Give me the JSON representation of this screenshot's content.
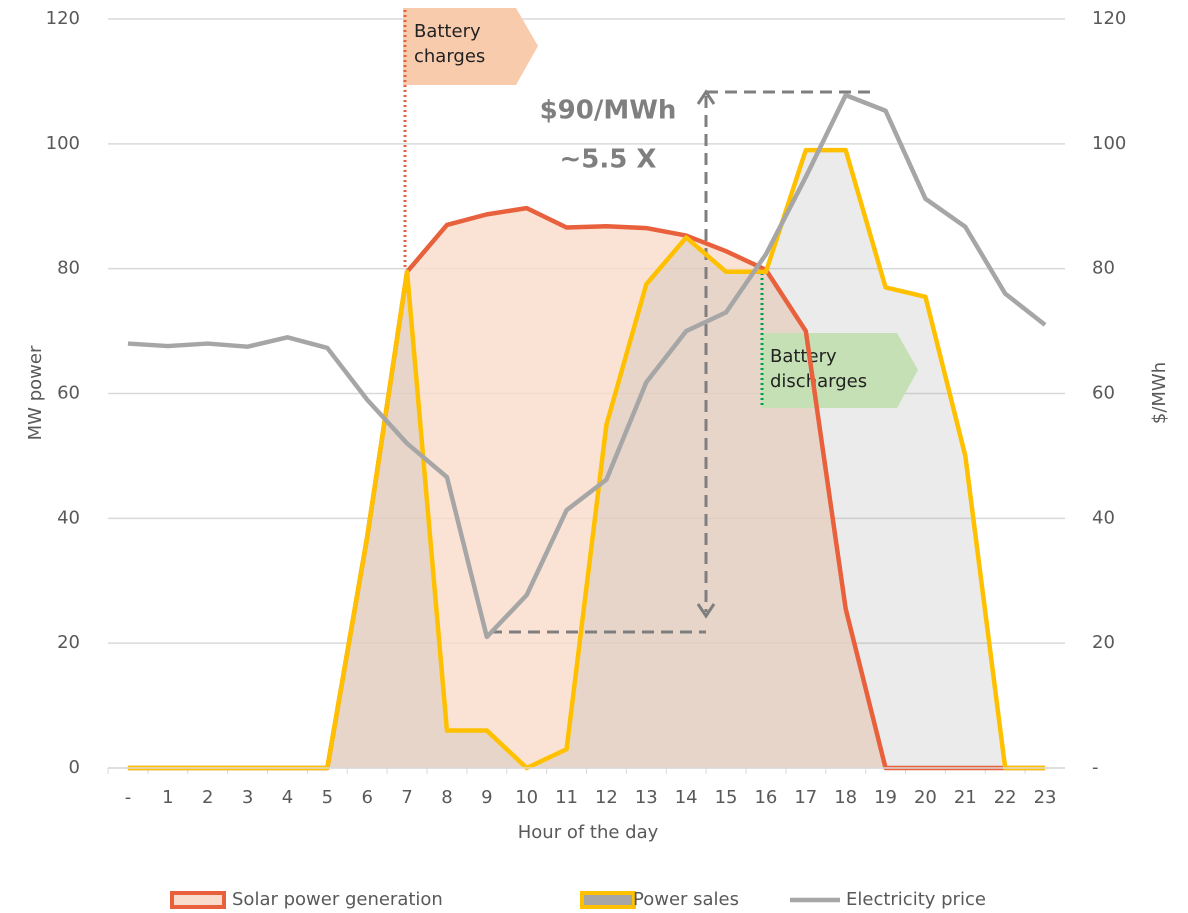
{
  "chart_data": {
    "type": "line",
    "categories": [
      "-",
      "1",
      "2",
      "3",
      "4",
      "5",
      "6",
      "7",
      "8",
      "9",
      "10",
      "11",
      "12",
      "13",
      "14",
      "15",
      "16",
      "17",
      "18",
      "19",
      "20",
      "21",
      "22",
      "23"
    ],
    "series": [
      {
        "name": "Solar power generation",
        "color": "#e8603c",
        "fill": "#f9dccb",
        "area": true,
        "values": [
          0,
          0,
          0,
          0,
          0,
          0,
          37,
          79.5,
          87,
          88.7,
          89.7,
          86.6,
          86.8,
          86.5,
          85.3,
          82.8,
          79.8,
          70,
          25.5,
          0,
          0,
          0,
          0,
          0
        ]
      },
      {
        "name": "Power sales",
        "color": "#ffc000",
        "fill": "#a6a6a6",
        "area": true,
        "values": [
          0,
          0,
          0,
          0,
          0,
          0,
          37,
          79.5,
          6,
          6,
          0,
          3,
          55,
          77.5,
          85,
          79.5,
          79.5,
          99,
          99,
          77,
          75.5,
          50,
          0,
          0
        ]
      },
      {
        "name": "Electricity price",
        "color": "#a6a6a6",
        "axis": "y2",
        "values": [
          68,
          67.6,
          68,
          67.5,
          69,
          67.3,
          59,
          52,
          46.6,
          21,
          27.7,
          41.3,
          46.2,
          61.8,
          70,
          73,
          82.3,
          94.7,
          107.8,
          105.3,
          91.2,
          86.7,
          76,
          71
        ]
      }
    ],
    "xlabel": "Hour of the day",
    "ylabel": "MW power",
    "y2label": "$/MWh",
    "ylim": [
      0,
      120
    ],
    "yticks": [
      0,
      20,
      40,
      60,
      80,
      100,
      120
    ],
    "y2lim": [
      0,
      120
    ],
    "y2ticks": [
      {
        "value": 0,
        "label": "-"
      },
      20,
      40,
      60,
      80,
      100,
      120
    ],
    "grid": true,
    "legend": "bottom",
    "annotations": {
      "charge": [
        "Battery",
        "charges"
      ],
      "discharge": [
        "Battery",
        "discharges"
      ],
      "spread": "$90/MWh",
      "ratio": "~5.5 X"
    }
  }
}
